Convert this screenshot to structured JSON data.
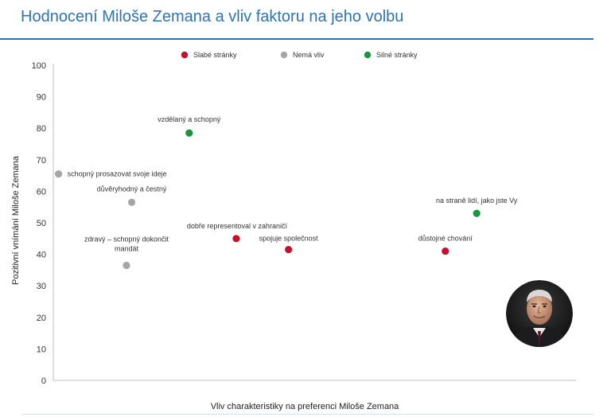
{
  "title": "Hodnocení Miloše Zemana a vliv faktoru na jeho volbu",
  "chart_data": {
    "type": "scatter",
    "xlabel": "Vliv charakteristiky na preferenci Miloše Zemana",
    "ylabel": "Pozitivní vnímání Miloše Zemana",
    "ylim": [
      0,
      100
    ],
    "yticks": [
      0,
      10,
      20,
      30,
      40,
      50,
      60,
      70,
      80,
      90,
      100
    ],
    "x_tick_labels_shown": false,
    "grid": false,
    "legend_position": "top-center",
    "series": [
      {
        "name": "Slabé stránky",
        "color": "#c8102e",
        "points": [
          {
            "label": "dobře representoval v zahraničí",
            "x": 0.35,
            "y": 45
          },
          {
            "label": "spojuje společnost",
            "x": 0.45,
            "y": 41.5
          },
          {
            "label": "důstojné chování",
            "x": 0.75,
            "y": 41
          }
        ]
      },
      {
        "name": "Nemá vliv",
        "color": "#a6a6a6",
        "points": [
          {
            "label": "schopný prosazovat svoje ideje",
            "x": 0.01,
            "y": 65.5
          },
          {
            "label": "důvěryhodný a čestný",
            "x": 0.15,
            "y": 56.5
          },
          {
            "label": "zdravý – schopný dokončit mandát",
            "x": 0.14,
            "y": 36.5
          }
        ]
      },
      {
        "name": "Silné stránky",
        "color": "#1a9641",
        "points": [
          {
            "label": "vzdělaný a schopný",
            "x": 0.26,
            "y": 78.5
          },
          {
            "label": "na straně lidí, jako jste Vy",
            "x": 0.81,
            "y": 53
          }
        ]
      }
    ]
  },
  "photo": {
    "alt": "portrait-photo"
  }
}
